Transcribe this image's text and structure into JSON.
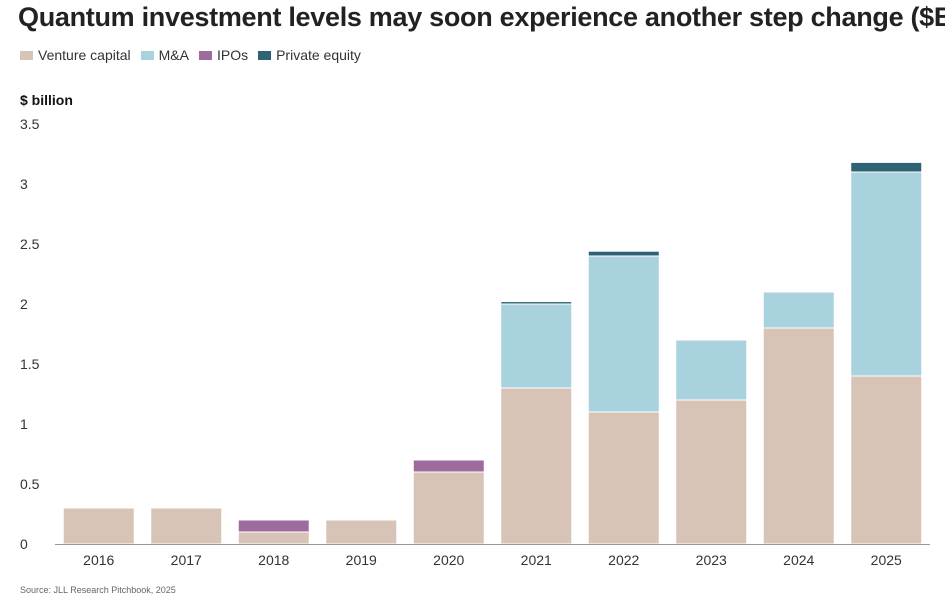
{
  "title": "Quantum investment levels may soon experience another step change ($B)",
  "unit_label": "$ billion",
  "source": "Source: JLL Research Pitchbook, 2025",
  "colors": {
    "Venture capital": "#d8c4b6",
    "M&A": "#a8d2de",
    "IPOs": "#9e6b9e",
    "Private equity": "#2e6275",
    "axis": "#999999",
    "tick_text": "#333333"
  },
  "chart_data": {
    "type": "bar",
    "stacked": true,
    "categories": [
      "2016",
      "2017",
      "2018",
      "2019",
      "2020",
      "2021",
      "2022",
      "2023",
      "2024",
      "2025"
    ],
    "series": [
      {
        "name": "Venture capital",
        "values": [
          0.3,
          0.3,
          0.1,
          0.2,
          0.6,
          1.3,
          1.1,
          1.2,
          1.8,
          1.4
        ]
      },
      {
        "name": "M&A",
        "values": [
          0,
          0,
          0,
          0,
          0,
          0.7,
          1.3,
          0.5,
          0.3,
          1.7
        ]
      },
      {
        "name": "IPOs",
        "values": [
          0,
          0,
          0.1,
          0,
          0.1,
          0,
          0,
          0,
          0,
          0
        ]
      },
      {
        "name": "Private equity",
        "values": [
          0,
          0,
          0,
          0,
          0,
          0.02,
          0.04,
          0,
          0,
          0.08
        ]
      }
    ],
    "ylabel": "$ billion",
    "ylim": [
      0,
      3.5
    ],
    "yticks": [
      "0",
      "0.5",
      "1",
      "1.5",
      "2",
      "2.5",
      "3",
      "3.5"
    ],
    "grid": false,
    "legend": "top-left"
  }
}
